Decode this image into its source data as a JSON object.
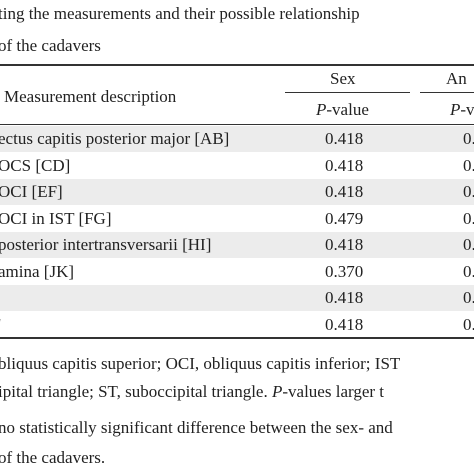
{
  "caption": [
    "ting the measurements and their possible relationship",
    "of the cadavers"
  ],
  "table": {
    "header": {
      "description": "Measurement description",
      "group1": "Sex",
      "group2": "An",
      "sub1": {
        "italic": "P",
        "rest": "-value"
      },
      "sub2": {
        "italic": "P",
        "rest": "-v"
      }
    },
    "rows": [
      [
        "ectus capitis posterior major [AB]",
        "0.418",
        "0."
      ],
      [
        "OCS [CD]",
        "0.418",
        "0."
      ],
      [
        "OCI [EF]",
        "0.418",
        "0."
      ],
      [
        "OCI in IST [FG]",
        "0.479",
        "0."
      ],
      [
        "posterior intertransversarii [HI]",
        "0.418",
        "0."
      ],
      [
        "amina [JK]",
        "0.370",
        "0."
      ],
      [
        null,
        "0.418",
        "0."
      ],
      [
        "'",
        "0.418",
        "0."
      ]
    ]
  },
  "footnote": [
    [
      "bliquus capitis superior; OCI, obliquus capitis inferior; IST"
    ],
    [
      "ipital triangle; ST, suboccipital triangle. ",
      "P",
      "-values larger t"
    ],
    [
      "no statistically significant difference between the sex- and"
    ],
    [
      "of the cadavers."
    ]
  ]
}
